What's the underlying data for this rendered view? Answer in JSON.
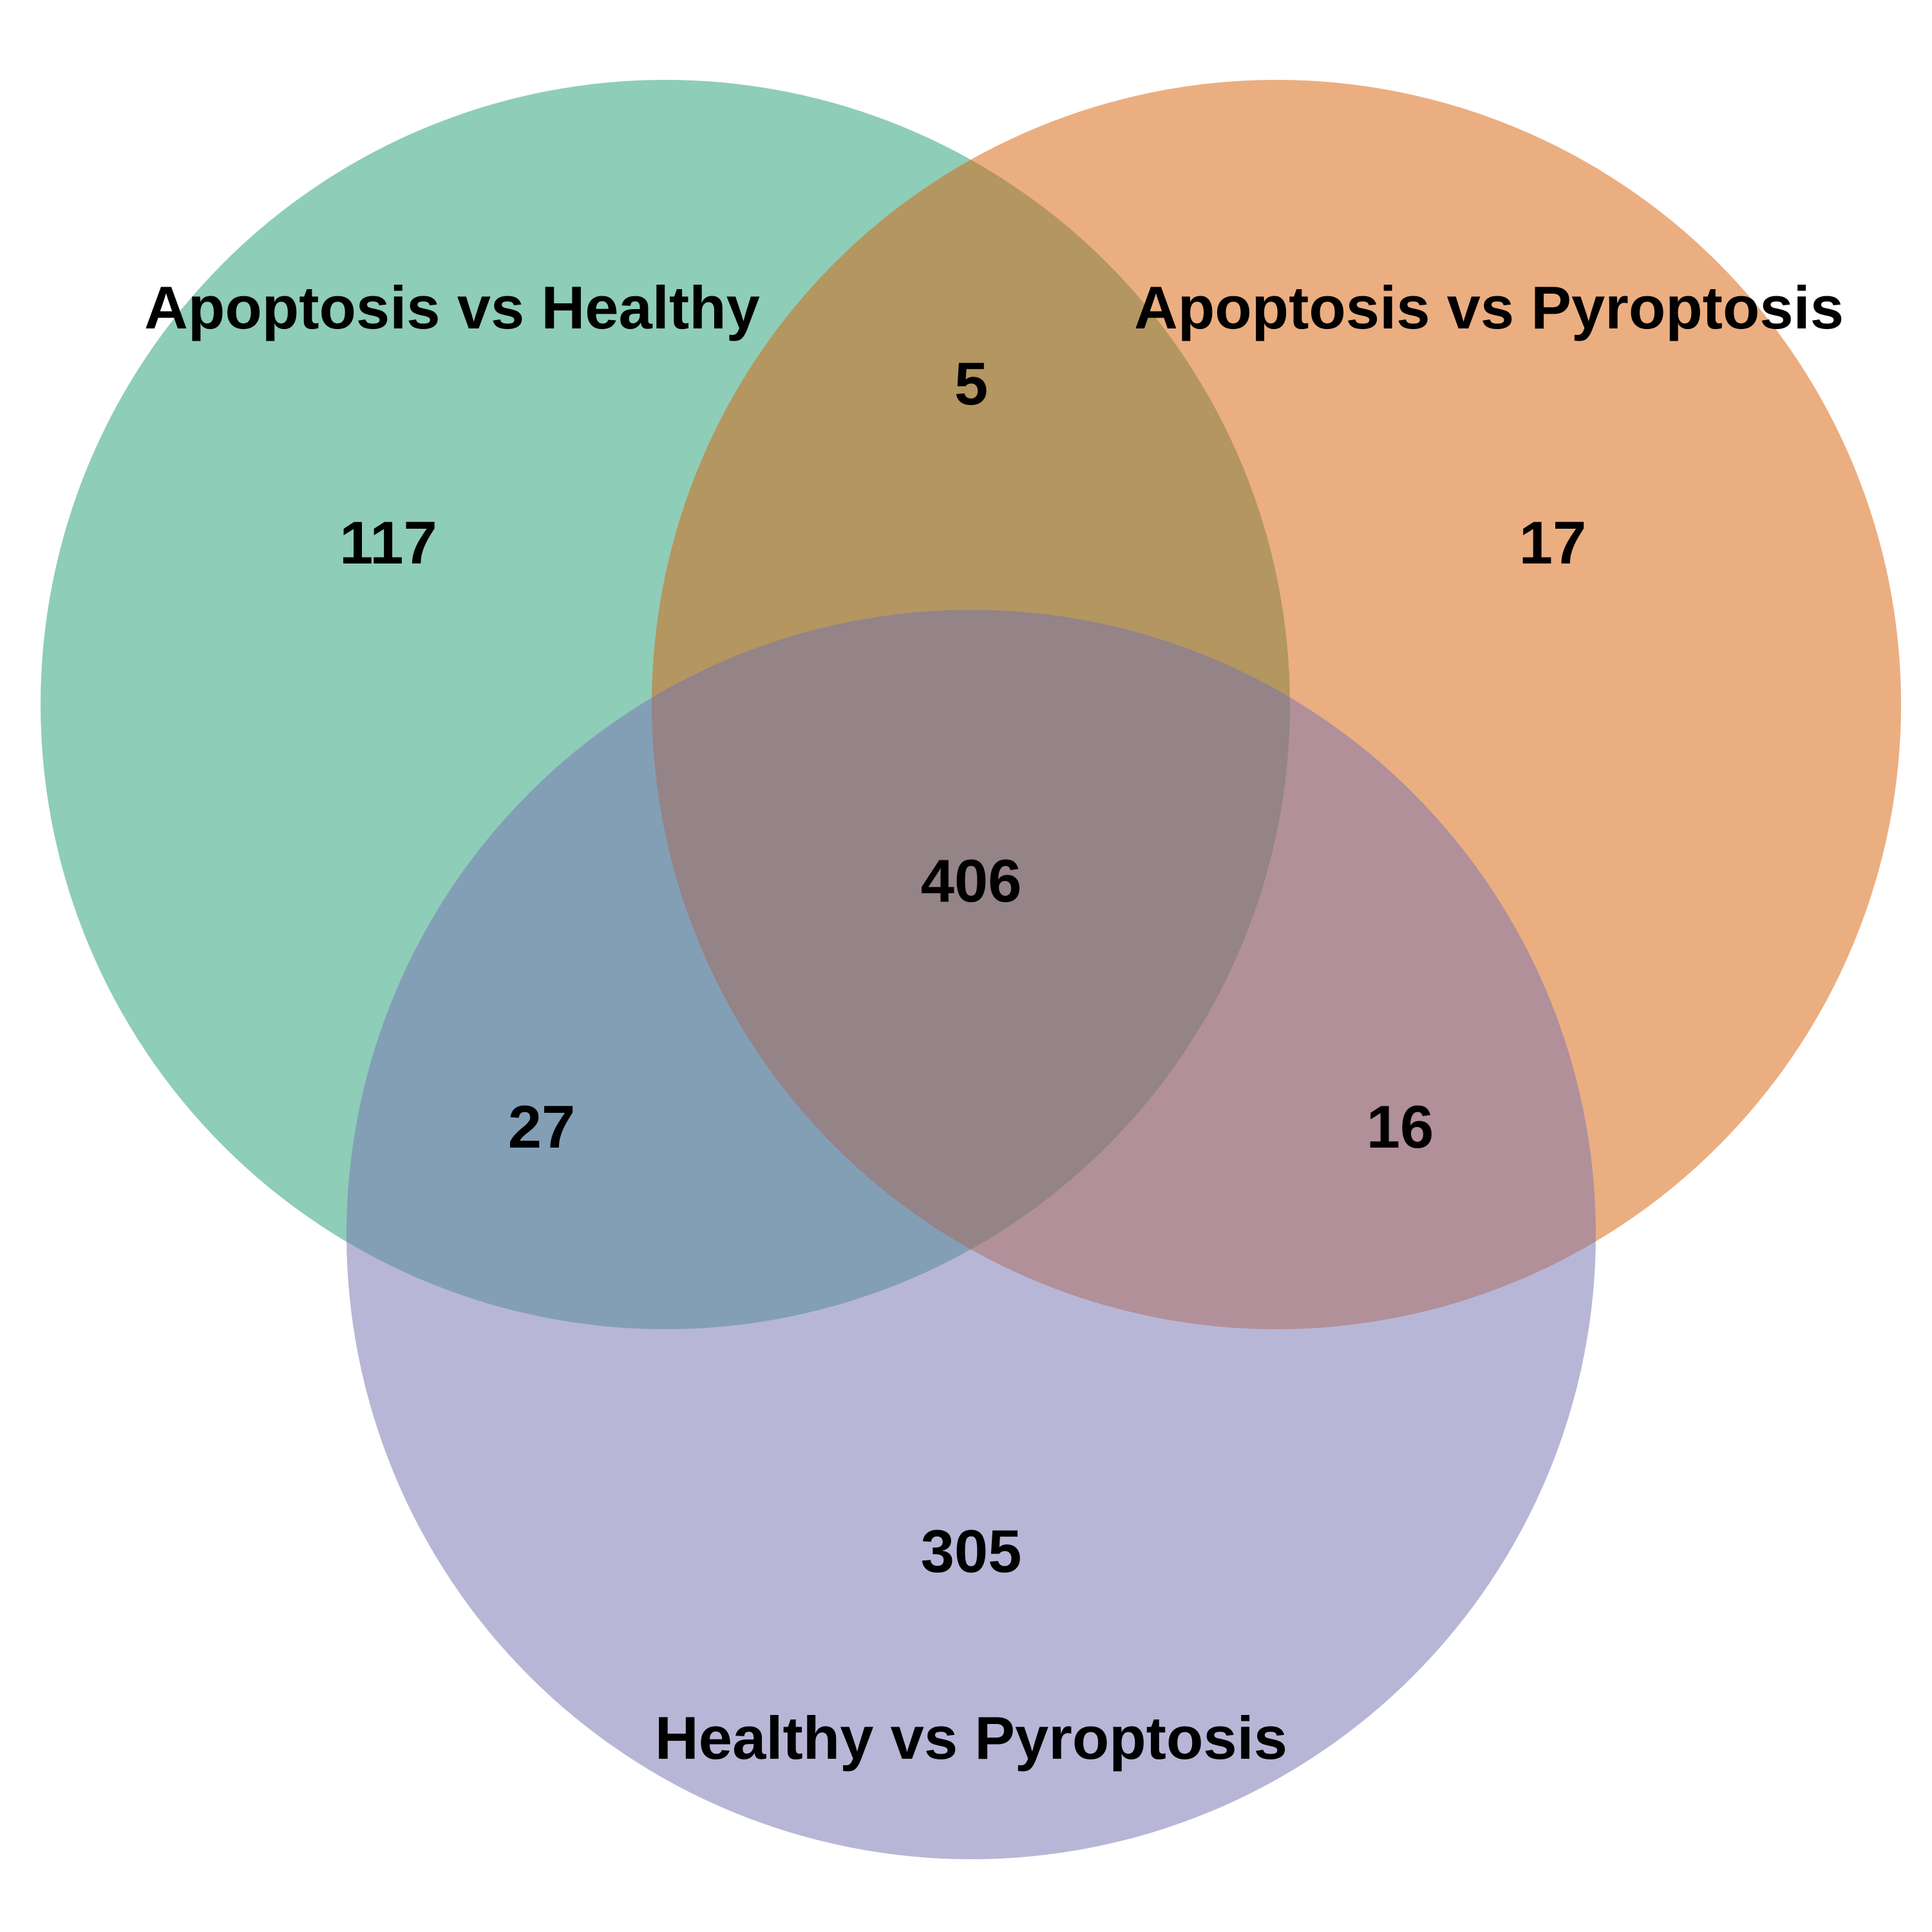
{
  "diagram": {
    "type": "venn3",
    "sets": [
      {
        "id": "A",
        "label": "Apoptosis vs Healthy",
        "color": "#8ECDB8"
      },
      {
        "id": "B",
        "label": "Apoptosis vs Pyroptosis",
        "color": "#EBAE81"
      },
      {
        "id": "C",
        "label": "Healthy vs Pyroptosis",
        "color": "#B8B6D6"
      }
    ],
    "regions": {
      "A_only": "117",
      "B_only": "17",
      "C_only": "305",
      "AB_only": "5",
      "AC_only": "27",
      "BC_only": "16",
      "ABC": "406"
    },
    "overlap_colors": {
      "AB": "#B39660",
      "AC": "#839FB6",
      "BC": "#B19099",
      "ABC": "#948387"
    }
  }
}
